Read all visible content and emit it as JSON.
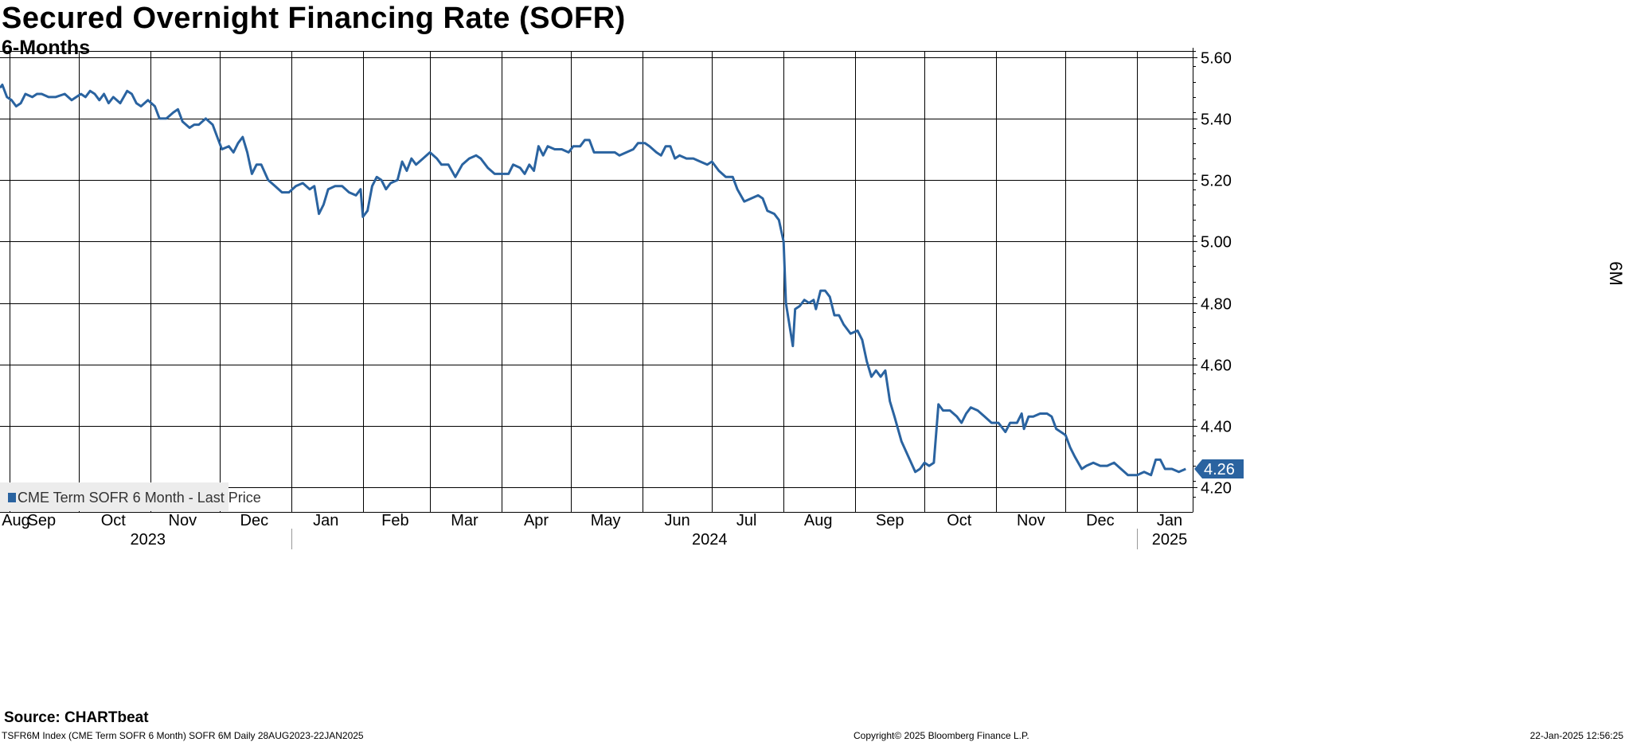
{
  "header": {
    "title": "Secured Overnight Financing Rate (SOFR)",
    "subtitle": "6-Months"
  },
  "source": "Source: CHARTbeat",
  "footer": {
    "left": "TSFR6M Index (CME Term SOFR 6 Month) SOFR 6M  Daily 28AUG2023-22JAN2025",
    "center": "Copyright© 2025 Bloomberg Finance L.P.",
    "right": "22-Jan-2025 12:56:25"
  },
  "colors": {
    "series": "#2a63a0",
    "grid": "#000000",
    "legend_bg": "#ececec"
  },
  "chart_data": {
    "type": "line",
    "title": "Secured Overnight Financing Rate (SOFR)",
    "subtitle": "6-Months",
    "ylabel": "6M",
    "ylim": [
      4.12,
      5.62
    ],
    "xlim": [
      "2023-08-28",
      "2025-01-25"
    ],
    "y_ticks": [
      "5.60",
      "5.40",
      "5.20",
      "5.00",
      "4.80",
      "4.60",
      "4.40",
      "4.20"
    ],
    "grid": true,
    "legend_position": "bottom-left",
    "last_value_label": "4.26",
    "x_month_labels": [
      {
        "label": "Aug",
        "date": "2023-08-29"
      },
      {
        "label": "Sep",
        "date": "2023-09-15"
      },
      {
        "label": "Oct",
        "date": "2023-10-16"
      },
      {
        "label": "Nov",
        "date": "2023-11-15"
      },
      {
        "label": "Dec",
        "date": "2023-12-16"
      },
      {
        "label": "Jan",
        "date": "2024-01-16"
      },
      {
        "label": "Feb",
        "date": "2024-02-15"
      },
      {
        "label": "Mar",
        "date": "2024-03-16"
      },
      {
        "label": "Apr",
        "date": "2024-04-16"
      },
      {
        "label": "May",
        "date": "2024-05-16"
      },
      {
        "label": "Jun",
        "date": "2024-06-16"
      },
      {
        "label": "Jul",
        "date": "2024-07-16"
      },
      {
        "label": "Aug",
        "date": "2024-08-16"
      },
      {
        "label": "Sep",
        "date": "2024-09-16"
      },
      {
        "label": "Oct",
        "date": "2024-10-16"
      },
      {
        "label": "Nov",
        "date": "2024-11-16"
      },
      {
        "label": "Dec",
        "date": "2024-12-16"
      },
      {
        "label": "Jan",
        "date": "2025-01-15"
      }
    ],
    "x_year_labels": [
      {
        "label": "2023",
        "date": "2023-10-31"
      },
      {
        "label": "2024",
        "date": "2024-06-30"
      },
      {
        "label": "2025",
        "date": "2025-01-15"
      }
    ],
    "x_grid_dates": [
      "2023-09-01",
      "2023-10-01",
      "2023-11-01",
      "2023-12-01",
      "2024-01-01",
      "2024-02-01",
      "2024-03-01",
      "2024-04-01",
      "2024-05-01",
      "2024-06-01",
      "2024-07-01",
      "2024-08-01",
      "2024-09-01",
      "2024-10-01",
      "2024-11-01",
      "2024-12-01",
      "2025-01-01"
    ],
    "series": [
      {
        "name": "CME Term SOFR 6 Month - Last Price",
        "points": [
          [
            "2023-08-28",
            5.5
          ],
          [
            "2023-08-29",
            5.51
          ],
          [
            "2023-08-31",
            5.47
          ],
          [
            "2023-09-02",
            5.46
          ],
          [
            "2023-09-04",
            5.44
          ],
          [
            "2023-09-06",
            5.45
          ],
          [
            "2023-09-08",
            5.48
          ],
          [
            "2023-09-11",
            5.47
          ],
          [
            "2023-09-13",
            5.48
          ],
          [
            "2023-09-15",
            5.48
          ],
          [
            "2023-09-18",
            5.47
          ],
          [
            "2023-09-21",
            5.47
          ],
          [
            "2023-09-25",
            5.48
          ],
          [
            "2023-09-28",
            5.46
          ],
          [
            "2023-10-02",
            5.48
          ],
          [
            "2023-10-04",
            5.47
          ],
          [
            "2023-10-06",
            5.49
          ],
          [
            "2023-10-08",
            5.48
          ],
          [
            "2023-10-10",
            5.46
          ],
          [
            "2023-10-12",
            5.48
          ],
          [
            "2023-10-14",
            5.45
          ],
          [
            "2023-10-16",
            5.47
          ],
          [
            "2023-10-19",
            5.45
          ],
          [
            "2023-10-22",
            5.49
          ],
          [
            "2023-10-24",
            5.48
          ],
          [
            "2023-10-26",
            5.45
          ],
          [
            "2023-10-28",
            5.44
          ],
          [
            "2023-10-31",
            5.46
          ],
          [
            "2023-11-03",
            5.44
          ],
          [
            "2023-11-05",
            5.4
          ],
          [
            "2023-11-08",
            5.4
          ],
          [
            "2023-11-11",
            5.42
          ],
          [
            "2023-11-13",
            5.43
          ],
          [
            "2023-11-15",
            5.39
          ],
          [
            "2023-11-18",
            5.37
          ],
          [
            "2023-11-20",
            5.38
          ],
          [
            "2023-11-22",
            5.38
          ],
          [
            "2023-11-25",
            5.4
          ],
          [
            "2023-11-28",
            5.38
          ],
          [
            "2023-11-30",
            5.34
          ],
          [
            "2023-12-02",
            5.3
          ],
          [
            "2023-12-05",
            5.31
          ],
          [
            "2023-12-07",
            5.29
          ],
          [
            "2023-12-09",
            5.32
          ],
          [
            "2023-12-11",
            5.34
          ],
          [
            "2023-12-13",
            5.29
          ],
          [
            "2023-12-15",
            5.22
          ],
          [
            "2023-12-17",
            5.25
          ],
          [
            "2023-12-19",
            5.25
          ],
          [
            "2023-12-22",
            5.2
          ],
          [
            "2023-12-25",
            5.18
          ],
          [
            "2023-12-28",
            5.16
          ],
          [
            "2023-12-31",
            5.16
          ],
          [
            "2024-01-03",
            5.18
          ],
          [
            "2024-01-06",
            5.19
          ],
          [
            "2024-01-09",
            5.17
          ],
          [
            "2024-01-11",
            5.18
          ],
          [
            "2024-01-13",
            5.09
          ],
          [
            "2024-01-15",
            5.12
          ],
          [
            "2024-01-17",
            5.17
          ],
          [
            "2024-01-20",
            5.18
          ],
          [
            "2024-01-23",
            5.18
          ],
          [
            "2024-01-26",
            5.16
          ],
          [
            "2024-01-29",
            5.15
          ],
          [
            "2024-01-31",
            5.17
          ],
          [
            "2024-02-01",
            5.08
          ],
          [
            "2024-02-03",
            5.1
          ],
          [
            "2024-02-05",
            5.18
          ],
          [
            "2024-02-07",
            5.21
          ],
          [
            "2024-02-09",
            5.2
          ],
          [
            "2024-02-11",
            5.17
          ],
          [
            "2024-02-13",
            5.19
          ],
          [
            "2024-02-16",
            5.2
          ],
          [
            "2024-02-18",
            5.26
          ],
          [
            "2024-02-20",
            5.23
          ],
          [
            "2024-02-22",
            5.27
          ],
          [
            "2024-02-24",
            5.25
          ],
          [
            "2024-02-27",
            5.27
          ],
          [
            "2024-03-01",
            5.29
          ],
          [
            "2024-03-04",
            5.27
          ],
          [
            "2024-03-06",
            5.25
          ],
          [
            "2024-03-09",
            5.25
          ],
          [
            "2024-03-12",
            5.21
          ],
          [
            "2024-03-15",
            5.25
          ],
          [
            "2024-03-18",
            5.27
          ],
          [
            "2024-03-21",
            5.28
          ],
          [
            "2024-03-23",
            5.27
          ],
          [
            "2024-03-26",
            5.24
          ],
          [
            "2024-03-29",
            5.22
          ],
          [
            "2024-04-01",
            5.22
          ],
          [
            "2024-04-04",
            5.22
          ],
          [
            "2024-04-06",
            5.25
          ],
          [
            "2024-04-09",
            5.24
          ],
          [
            "2024-04-11",
            5.22
          ],
          [
            "2024-04-13",
            5.25
          ],
          [
            "2024-04-15",
            5.23
          ],
          [
            "2024-04-17",
            5.31
          ],
          [
            "2024-04-19",
            5.28
          ],
          [
            "2024-04-21",
            5.31
          ],
          [
            "2024-04-24",
            5.3
          ],
          [
            "2024-04-27",
            5.3
          ],
          [
            "2024-04-30",
            5.29
          ],
          [
            "2024-05-02",
            5.31
          ],
          [
            "2024-05-05",
            5.31
          ],
          [
            "2024-05-07",
            5.33
          ],
          [
            "2024-05-09",
            5.33
          ],
          [
            "2024-05-11",
            5.29
          ],
          [
            "2024-05-14",
            5.29
          ],
          [
            "2024-05-17",
            5.29
          ],
          [
            "2024-05-20",
            5.29
          ],
          [
            "2024-05-22",
            5.28
          ],
          [
            "2024-05-25",
            5.29
          ],
          [
            "2024-05-28",
            5.3
          ],
          [
            "2024-05-30",
            5.32
          ],
          [
            "2024-06-02",
            5.32
          ],
          [
            "2024-06-04",
            5.31
          ],
          [
            "2024-06-07",
            5.29
          ],
          [
            "2024-06-09",
            5.28
          ],
          [
            "2024-06-11",
            5.31
          ],
          [
            "2024-06-13",
            5.31
          ],
          [
            "2024-06-15",
            5.27
          ],
          [
            "2024-06-17",
            5.28
          ],
          [
            "2024-06-20",
            5.27
          ],
          [
            "2024-06-23",
            5.27
          ],
          [
            "2024-06-26",
            5.26
          ],
          [
            "2024-06-29",
            5.25
          ],
          [
            "2024-07-01",
            5.26
          ],
          [
            "2024-07-04",
            5.23
          ],
          [
            "2024-07-07",
            5.21
          ],
          [
            "2024-07-10",
            5.21
          ],
          [
            "2024-07-12",
            5.17
          ],
          [
            "2024-07-15",
            5.13
          ],
          [
            "2024-07-18",
            5.14
          ],
          [
            "2024-07-21",
            5.15
          ],
          [
            "2024-07-23",
            5.14
          ],
          [
            "2024-07-25",
            5.1
          ],
          [
            "2024-07-28",
            5.09
          ],
          [
            "2024-07-30",
            5.07
          ],
          [
            "2024-08-01",
            5.0
          ],
          [
            "2024-08-02",
            4.8
          ],
          [
            "2024-08-05",
            4.66
          ],
          [
            "2024-08-06",
            4.78
          ],
          [
            "2024-08-08",
            4.79
          ],
          [
            "2024-08-10",
            4.81
          ],
          [
            "2024-08-12",
            4.8
          ],
          [
            "2024-08-14",
            4.81
          ],
          [
            "2024-08-15",
            4.78
          ],
          [
            "2024-08-17",
            4.84
          ],
          [
            "2024-08-19",
            4.84
          ],
          [
            "2024-08-21",
            4.82
          ],
          [
            "2024-08-23",
            4.76
          ],
          [
            "2024-08-25",
            4.76
          ],
          [
            "2024-08-27",
            4.73
          ],
          [
            "2024-08-30",
            4.7
          ],
          [
            "2024-09-02",
            4.71
          ],
          [
            "2024-09-04",
            4.68
          ],
          [
            "2024-09-06",
            4.61
          ],
          [
            "2024-09-08",
            4.56
          ],
          [
            "2024-09-10",
            4.58
          ],
          [
            "2024-09-12",
            4.56
          ],
          [
            "2024-09-14",
            4.58
          ],
          [
            "2024-09-16",
            4.48
          ],
          [
            "2024-09-18",
            4.43
          ],
          [
            "2024-09-21",
            4.35
          ],
          [
            "2024-09-24",
            4.3
          ],
          [
            "2024-09-27",
            4.25
          ],
          [
            "2024-09-29",
            4.26
          ],
          [
            "2024-10-01",
            4.28
          ],
          [
            "2024-10-03",
            4.27
          ],
          [
            "2024-10-05",
            4.28
          ],
          [
            "2024-10-07",
            4.47
          ],
          [
            "2024-10-09",
            4.45
          ],
          [
            "2024-10-12",
            4.45
          ],
          [
            "2024-10-15",
            4.43
          ],
          [
            "2024-10-17",
            4.41
          ],
          [
            "2024-10-19",
            4.44
          ],
          [
            "2024-10-21",
            4.46
          ],
          [
            "2024-10-24",
            4.45
          ],
          [
            "2024-10-27",
            4.43
          ],
          [
            "2024-10-30",
            4.41
          ],
          [
            "2024-11-02",
            4.41
          ],
          [
            "2024-11-05",
            4.38
          ],
          [
            "2024-11-07",
            4.41
          ],
          [
            "2024-11-10",
            4.41
          ],
          [
            "2024-11-12",
            4.44
          ],
          [
            "2024-11-13",
            4.39
          ],
          [
            "2024-11-15",
            4.43
          ],
          [
            "2024-11-17",
            4.43
          ],
          [
            "2024-11-20",
            4.44
          ],
          [
            "2024-11-23",
            4.44
          ],
          [
            "2024-11-25",
            4.43
          ],
          [
            "2024-11-27",
            4.39
          ],
          [
            "2024-11-29",
            4.38
          ],
          [
            "2024-12-01",
            4.37
          ],
          [
            "2024-12-03",
            4.33
          ],
          [
            "2024-12-05",
            4.3
          ],
          [
            "2024-12-08",
            4.26
          ],
          [
            "2024-12-10",
            4.27
          ],
          [
            "2024-12-13",
            4.28
          ],
          [
            "2024-12-16",
            4.27
          ],
          [
            "2024-12-19",
            4.27
          ],
          [
            "2024-12-22",
            4.28
          ],
          [
            "2024-12-25",
            4.26
          ],
          [
            "2024-12-28",
            4.24
          ],
          [
            "2025-01-01",
            4.24
          ],
          [
            "2025-01-04",
            4.25
          ],
          [
            "2025-01-07",
            4.24
          ],
          [
            "2025-01-09",
            4.29
          ],
          [
            "2025-01-11",
            4.29
          ],
          [
            "2025-01-13",
            4.26
          ],
          [
            "2025-01-16",
            4.26
          ],
          [
            "2025-01-19",
            4.25
          ],
          [
            "2025-01-22",
            4.26
          ]
        ]
      }
    ]
  }
}
